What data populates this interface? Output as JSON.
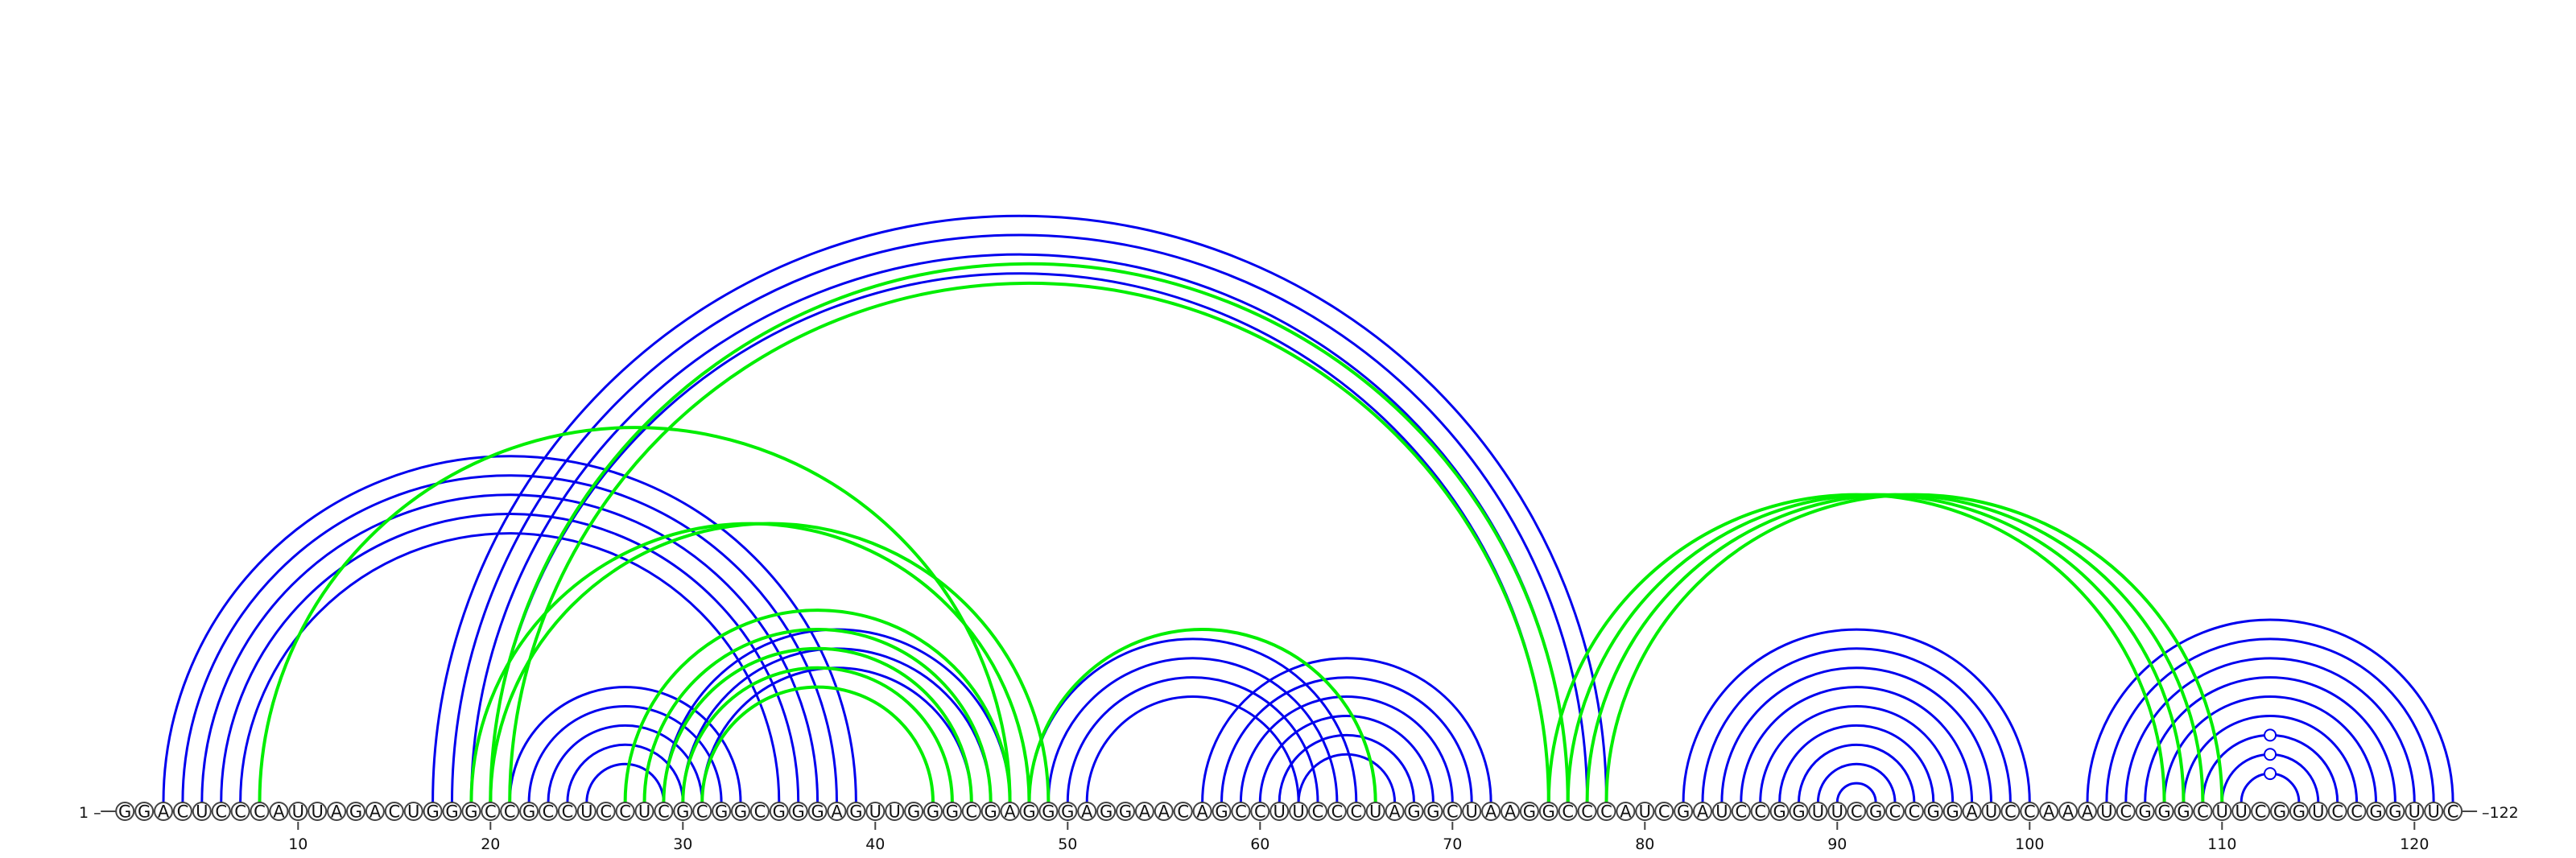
{
  "sequence": "GGACUCCCAUUAGACUGGGCCGCCUCCUCGCGGCGGGAGUUGGGCGAGGGAGGAACAGCCUUCCCUAGGCUAAGGCCCAUCGAUCCGGUUCGCCGGAUCCAAAUCGGGCUUCGGUCCGGUUC",
  "start_label": "1",
  "end_label": "122",
  "tick_labels": [
    "10",
    "20",
    "30",
    "40",
    "50",
    "60",
    "70",
    "80",
    "90",
    "100",
    "110",
    "120"
  ],
  "colors": {
    "blue": "#0000ee",
    "green": "#00ee00",
    "ring": "#444444"
  },
  "helices": [
    {
      "color": "blue",
      "pairs": [
        [
          3,
          39
        ],
        [
          4,
          38
        ],
        [
          5,
          37
        ],
        [
          6,
          36
        ],
        [
          7,
          35
        ]
      ]
    },
    {
      "color": "blue",
      "pairs": [
        [
          17,
          78
        ],
        [
          18,
          77
        ],
        [
          19,
          76
        ],
        [
          20,
          75
        ]
      ]
    },
    {
      "color": "blue",
      "pairs": [
        [
          21,
          33
        ],
        [
          22,
          32
        ],
        [
          23,
          31
        ],
        [
          24,
          30
        ],
        [
          25,
          29
        ]
      ]
    },
    {
      "color": "blue",
      "pairs": [
        [
          29,
          47
        ],
        [
          30,
          46
        ],
        [
          31,
          45
        ]
      ]
    },
    {
      "color": "blue",
      "pairs": [
        [
          48,
          65
        ],
        [
          49,
          64
        ],
        [
          50,
          63
        ],
        [
          51,
          62
        ]
      ]
    },
    {
      "color": "blue",
      "pairs": [
        [
          57,
          72
        ],
        [
          58,
          71
        ],
        [
          59,
          70
        ],
        [
          60,
          69
        ],
        [
          61,
          68
        ],
        [
          62,
          67
        ]
      ]
    },
    {
      "color": "blue",
      "pairs": [
        [
          82,
          100
        ],
        [
          83,
          99
        ],
        [
          84,
          98
        ],
        [
          85,
          97
        ],
        [
          86,
          96
        ],
        [
          87,
          95
        ],
        [
          88,
          94
        ],
        [
          89,
          93
        ],
        [
          90,
          92
        ]
      ]
    },
    {
      "color": "blue",
      "pairs": [
        [
          103,
          122
        ],
        [
          104,
          121
        ],
        [
          105,
          120
        ],
        [
          106,
          119
        ],
        [
          107,
          118
        ],
        [
          108,
          117
        ],
        [
          109,
          116
        ],
        [
          110,
          115
        ],
        [
          111,
          114
        ]
      ]
    },
    {
      "color": "green",
      "pairs": [
        [
          8,
          47
        ]
      ]
    },
    {
      "color": "green",
      "pairs": [
        [
          19,
          48
        ],
        [
          20,
          49
        ]
      ]
    },
    {
      "color": "green",
      "pairs": [
        [
          27,
          47
        ],
        [
          28,
          46
        ],
        [
          29,
          45
        ]
      ]
    },
    {
      "color": "green",
      "pairs": [
        [
          30,
          44
        ],
        [
          31,
          43
        ]
      ]
    },
    {
      "color": "green",
      "pairs": [
        [
          48,
          66
        ]
      ]
    },
    {
      "color": "green",
      "pairs": [
        [
          75,
          107
        ],
        [
          76,
          108
        ],
        [
          77,
          109
        ],
        [
          78,
          110
        ]
      ]
    },
    {
      "color": "green",
      "pairs": [
        [
          20,
          76
        ],
        [
          21,
          75
        ]
      ]
    }
  ],
  "gu_markers": [
    91,
    114,
    115,
    116
  ]
}
